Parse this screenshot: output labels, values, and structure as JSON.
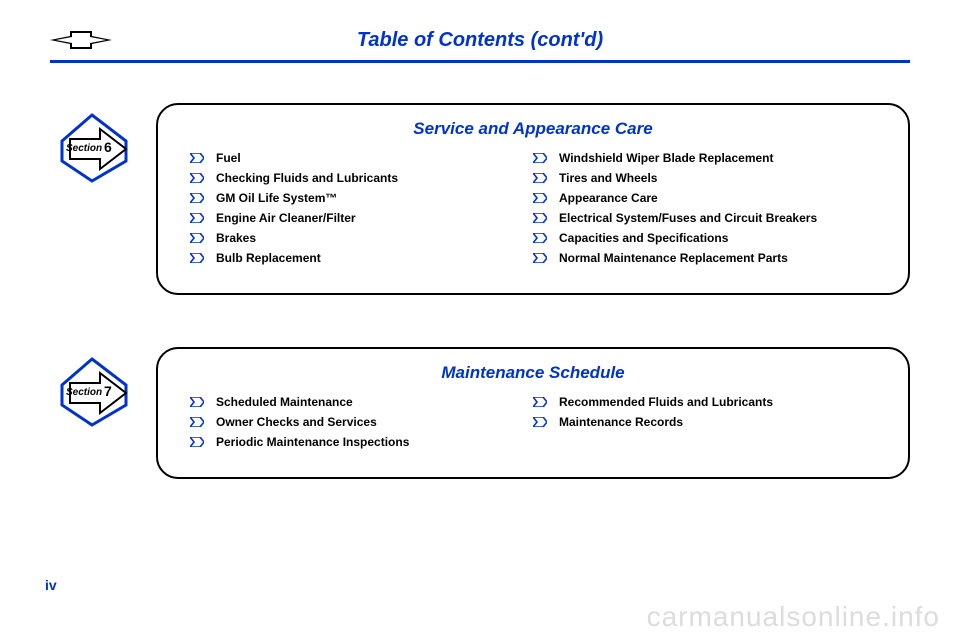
{
  "colors": {
    "accent": "#0033cc",
    "black": "#000000",
    "watermark": "#dcdcdc"
  },
  "header": {
    "title": "Table of Contents (cont'd)"
  },
  "pageNumber": "iv",
  "watermark": "carmanualsonline.info",
  "sections": [
    {
      "badge": {
        "label": "Section",
        "number": "6"
      },
      "title": "Service and Appearance Care",
      "left": [
        "Fuel",
        "Checking Fluids and Lubricants",
        "GM Oil Life System™",
        "Engine Air Cleaner/Filter",
        "Brakes",
        "Bulb Replacement"
      ],
      "right": [
        "Windshield Wiper Blade Replacement",
        "Tires and Wheels",
        "Appearance Care",
        "Electrical System/Fuses and Circuit Breakers",
        "Capacities and Specifications",
        "Normal Maintenance Replacement Parts"
      ]
    },
    {
      "badge": {
        "label": "Section",
        "number": "7"
      },
      "title": "Maintenance Schedule",
      "left": [
        "Scheduled Maintenance",
        "Owner Checks and Services",
        "Periodic Maintenance Inspections"
      ],
      "right": [
        "Recommended Fluids and Lubricants",
        "Maintenance Records"
      ]
    }
  ]
}
